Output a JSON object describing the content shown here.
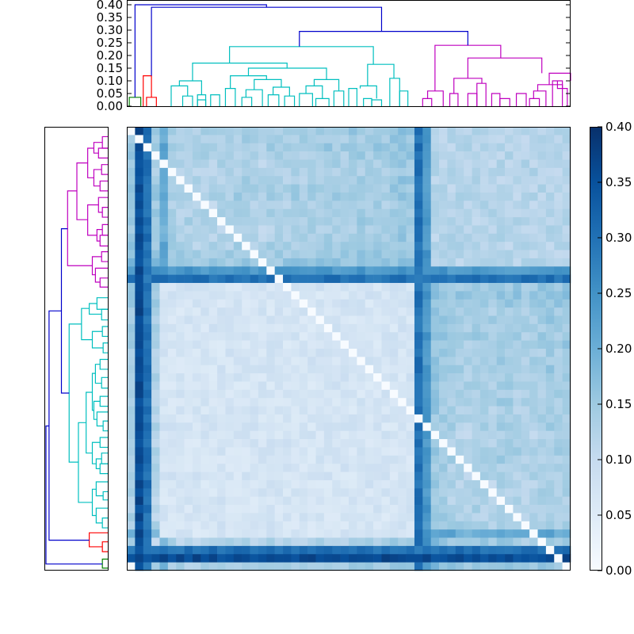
{
  "chart_data": [
    {
      "type": "dendrogram",
      "orientation": "top",
      "ylim": [
        0,
        0.4
      ],
      "yticks": [
        "0.00",
        "0.05",
        "0.10",
        "0.15",
        "0.20",
        "0.25",
        "0.30",
        "0.35",
        "0.40"
      ],
      "n_leaves": 54,
      "cluster_colors": {
        "green": "#008000",
        "red": "#ff0000",
        "cyan": "#00bfbf",
        "magenta": "#bf00bf",
        "blue": "#0000cc"
      },
      "links": [
        {
          "x1": 0.3,
          "x2": 1.7,
          "b1": 0.0,
          "b2": 0.0,
          "h": 0.035,
          "color": "green"
        },
        {
          "x1": 2.4,
          "x2": 3.6,
          "b1": 0.0,
          "b2": 0.0,
          "h": 0.035,
          "color": "red"
        },
        {
          "x1": 2.0,
          "x2": 3.0,
          "b1": 0.0,
          "b2": 0.035,
          "h": 0.12,
          "color": "red"
        },
        {
          "x1": 6.8,
          "x2": 8.0,
          "b1": 0.0,
          "b2": 0.0,
          "h": 0.04,
          "color": "cyan"
        },
        {
          "x1": 5.4,
          "x2": 7.4,
          "b1": 0.0,
          "b2": 0.04,
          "h": 0.08,
          "color": "cyan"
        },
        {
          "x1": 8.6,
          "x2": 9.6,
          "b1": 0.0,
          "b2": 0.0,
          "h": 0.025,
          "color": "cyan"
        },
        {
          "x1": 8.6,
          "x2": 9.6,
          "b1": 0.0,
          "b2": 0.0,
          "h": 0.045,
          "color": "cyan"
        },
        {
          "x1": 6.4,
          "x2": 9.1,
          "b1": 0.08,
          "b2": 0.045,
          "h": 0.1,
          "color": "cyan"
        },
        {
          "x1": 10.2,
          "x2": 11.3,
          "b1": 0.0,
          "b2": 0.0,
          "h": 0.045,
          "color": "cyan"
        },
        {
          "x1": 12.0,
          "x2": 13.2,
          "b1": 0.0,
          "b2": 0.0,
          "h": 0.07,
          "color": "cyan"
        },
        {
          "x1": 14.0,
          "x2": 15.2,
          "b1": 0.0,
          "b2": 0.0,
          "h": 0.035,
          "color": "cyan"
        },
        {
          "x1": 14.5,
          "x2": 16.5,
          "b1": 0.035,
          "b2": 0.0,
          "h": 0.065,
          "color": "cyan"
        },
        {
          "x1": 17.2,
          "x2": 18.5,
          "b1": 0.0,
          "b2": 0.0,
          "h": 0.045,
          "color": "cyan"
        },
        {
          "x1": 19.2,
          "x2": 20.4,
          "b1": 0.0,
          "b2": 0.0,
          "h": 0.04,
          "color": "cyan"
        },
        {
          "x1": 17.8,
          "x2": 19.8,
          "b1": 0.045,
          "b2": 0.04,
          "h": 0.075,
          "color": "cyan"
        },
        {
          "x1": 15.5,
          "x2": 18.8,
          "b1": 0.065,
          "b2": 0.075,
          "h": 0.105,
          "color": "cyan"
        },
        {
          "x1": 12.6,
          "x2": 17.0,
          "b1": 0.07,
          "b2": 0.105,
          "h": 0.12,
          "color": "cyan"
        },
        {
          "x1": 21.0,
          "x2": 22.6,
          "b1": 0.0,
          "b2": 0.0,
          "h": 0.05,
          "color": "cyan"
        },
        {
          "x1": 23.0,
          "x2": 24.6,
          "b1": 0.0,
          "b2": 0.0,
          "h": 0.03,
          "color": "cyan"
        },
        {
          "x1": 25.2,
          "x2": 26.4,
          "b1": 0.0,
          "b2": 0.0,
          "h": 0.06,
          "color": "cyan"
        },
        {
          "x1": 21.8,
          "x2": 23.8,
          "b1": 0.05,
          "b2": 0.03,
          "h": 0.08,
          "color": "cyan"
        },
        {
          "x1": 22.8,
          "x2": 25.8,
          "b1": 0.08,
          "b2": 0.06,
          "h": 0.105,
          "color": "cyan"
        },
        {
          "x1": 14.8,
          "x2": 24.3,
          "b1": 0.12,
          "b2": 0.105,
          "h": 0.15,
          "color": "cyan"
        },
        {
          "x1": 8.0,
          "x2": 19.5,
          "b1": 0.1,
          "b2": 0.15,
          "h": 0.17,
          "color": "cyan"
        },
        {
          "x1": 27.0,
          "x2": 28.0,
          "b1": 0.0,
          "b2": 0.0,
          "h": 0.07,
          "color": "cyan"
        },
        {
          "x1": 28.8,
          "x2": 29.8,
          "b1": 0.0,
          "b2": 0.0,
          "h": 0.03,
          "color": "cyan"
        },
        {
          "x1": 29.8,
          "x2": 31.0,
          "b1": 0.0,
          "b2": 0.0,
          "h": 0.025,
          "color": "cyan"
        },
        {
          "x1": 28.4,
          "x2": 30.4,
          "b1": 0.07,
          "b2": 0.03,
          "h": 0.08,
          "color": "cyan"
        },
        {
          "x1": 32.0,
          "x2": 33.2,
          "b1": 0.0,
          "b2": 0.0,
          "h": 0.11,
          "color": "cyan"
        },
        {
          "x1": 33.2,
          "x2": 34.2,
          "b1": 0.0,
          "b2": 0.0,
          "h": 0.06,
          "color": "cyan"
        },
        {
          "x1": 29.3,
          "x2": 32.5,
          "b1": 0.08,
          "b2": 0.11,
          "h": 0.165,
          "color": "cyan"
        },
        {
          "x1": 12.5,
          "x2": 30.0,
          "b1": 0.17,
          "b2": 0.165,
          "h": 0.235,
          "color": "cyan"
        },
        {
          "x1": 36.0,
          "x2": 37.1,
          "b1": 0.0,
          "b2": 0.0,
          "h": 0.03,
          "color": "magenta"
        },
        {
          "x1": 36.6,
          "x2": 38.5,
          "b1": 0.03,
          "b2": 0.0,
          "h": 0.06,
          "color": "magenta"
        },
        {
          "x1": 39.3,
          "x2": 40.3,
          "b1": 0.0,
          "b2": 0.0,
          "h": 0.05,
          "color": "magenta"
        },
        {
          "x1": 41.5,
          "x2": 42.6,
          "b1": 0.0,
          "b2": 0.0,
          "h": 0.05,
          "color": "magenta"
        },
        {
          "x1": 42.6,
          "x2": 43.7,
          "b1": 0.0,
          "b2": 0.0,
          "h": 0.09,
          "color": "magenta"
        },
        {
          "x1": 39.8,
          "x2": 43.2,
          "b1": 0.05,
          "b2": 0.09,
          "h": 0.11,
          "color": "magenta"
        },
        {
          "x1": 44.4,
          "x2": 45.4,
          "b1": 0.0,
          "b2": 0.0,
          "h": 0.05,
          "color": "magenta"
        },
        {
          "x1": 45.4,
          "x2": 46.6,
          "b1": 0.0,
          "b2": 0.0,
          "h": 0.03,
          "color": "magenta"
        },
        {
          "x1": 47.4,
          "x2": 48.6,
          "b1": 0.0,
          "b2": 0.0,
          "h": 0.05,
          "color": "magenta"
        },
        {
          "x1": 49.0,
          "x2": 50.2,
          "b1": 0.0,
          "b2": 0.0,
          "h": 0.03,
          "color": "magenta"
        },
        {
          "x1": 49.5,
          "x2": 51.0,
          "b1": 0.03,
          "b2": 0.0,
          "h": 0.06,
          "color": "magenta"
        },
        {
          "x1": 51.8,
          "x2": 53.0,
          "b1": 0.0,
          "b2": 0.0,
          "h": 0.1,
          "color": "magenta"
        },
        {
          "x1": 52.4,
          "x2": 53.6,
          "b1": 0.1,
          "b2": 0.0,
          "h": 0.07,
          "color": "magenta"
        },
        {
          "x1": 50.0,
          "x2": 53.0,
          "b1": 0.06,
          "b2": 0.07,
          "h": 0.085,
          "color": "magenta"
        },
        {
          "x1": 51.4,
          "x2": 54.0,
          "b1": 0.085,
          "b2": 0.1,
          "h": 0.13,
          "color": "magenta"
        },
        {
          "x1": 41.5,
          "x2": 50.5,
          "b1": 0.11,
          "b2": 0.13,
          "h": 0.19,
          "color": "magenta"
        },
        {
          "x1": 37.5,
          "x2": 45.5,
          "b1": 0.06,
          "b2": 0.19,
          "h": 0.24,
          "color": "magenta"
        },
        {
          "x1": 21.0,
          "x2": 41.5,
          "b1": 0.235,
          "b2": 0.24,
          "h": 0.295,
          "color": "blue"
        },
        {
          "x1": 3.0,
          "x2": 31.0,
          "b1": 0.12,
          "b2": 0.295,
          "h": 0.39,
          "color": "blue"
        },
        {
          "x1": 1.0,
          "x2": 17.0,
          "b1": 0.035,
          "b2": 0.39,
          "h": 0.4,
          "color": "blue"
        }
      ]
    },
    {
      "type": "dendrogram",
      "orientation": "left",
      "n_leaves": 54,
      "cluster_colors": {
        "green": "#008000",
        "red": "#ff0000",
        "cyan": "#00bfbf",
        "magenta": "#bf00bf",
        "blue": "#0000cc"
      },
      "links": [
        {
          "y1": 0.3,
          "y2": 1.4,
          "b1": 0.0,
          "b2": 0.0,
          "h": 0.035,
          "color": "green"
        },
        {
          "y1": 2.3,
          "y2": 3.5,
          "b1": 0.0,
          "b2": 0.0,
          "h": 0.035,
          "color": "red"
        },
        {
          "y1": 2.9,
          "y2": 4.6,
          "b1": 0.035,
          "b2": 0.0,
          "h": 0.12,
          "color": "red"
        },
        {
          "y1": 5.2,
          "y2": 6.4,
          "b1": 0.0,
          "b2": 0.0,
          "h": 0.035,
          "color": "cyan"
        },
        {
          "y1": 5.8,
          "y2": 7.6,
          "b1": 0.035,
          "b2": 0.0,
          "h": 0.075,
          "color": "cyan"
        },
        {
          "y1": 8.6,
          "y2": 9.6,
          "b1": 0.0,
          "b2": 0.0,
          "h": 0.03,
          "color": "cyan"
        },
        {
          "y1": 9.1,
          "y2": 10.8,
          "b1": 0.03,
          "b2": 0.0,
          "h": 0.075,
          "color": "cyan"
        },
        {
          "y1": 6.7,
          "y2": 9.9,
          "b1": 0.075,
          "b2": 0.075,
          "h": 0.1,
          "color": "cyan"
        },
        {
          "y1": 11.8,
          "y2": 13.0,
          "b1": 0.0,
          "b2": 0.0,
          "h": 0.05,
          "color": "cyan"
        },
        {
          "y1": 13.0,
          "y2": 14.3,
          "b1": 0.0,
          "b2": 0.0,
          "h": 0.04,
          "color": "cyan"
        },
        {
          "y1": 12.4,
          "y2": 13.6,
          "b1": 0.05,
          "b2": 0.04,
          "h": 0.075,
          "color": "cyan"
        },
        {
          "y1": 15.0,
          "y2": 16.2,
          "b1": 0.0,
          "b2": 0.0,
          "h": 0.05,
          "color": "cyan"
        },
        {
          "y1": 13.0,
          "y2": 15.6,
          "b1": 0.075,
          "b2": 0.05,
          "h": 0.1,
          "color": "cyan"
        },
        {
          "y1": 17.0,
          "y2": 18.2,
          "b1": 0.0,
          "b2": 0.0,
          "h": 0.03,
          "color": "cyan"
        },
        {
          "y1": 17.6,
          "y2": 19.3,
          "b1": 0.03,
          "b2": 0.0,
          "h": 0.07,
          "color": "cyan"
        },
        {
          "y1": 20.0,
          "y2": 21.2,
          "b1": 0.0,
          "b2": 0.0,
          "h": 0.05,
          "color": "cyan"
        },
        {
          "y1": 18.4,
          "y2": 20.6,
          "b1": 0.07,
          "b2": 0.05,
          "h": 0.09,
          "color": "cyan"
        },
        {
          "y1": 22.2,
          "y2": 23.5,
          "b1": 0.0,
          "b2": 0.0,
          "h": 0.04,
          "color": "cyan"
        },
        {
          "y1": 24.5,
          "y2": 25.7,
          "b1": 0.0,
          "b2": 0.0,
          "h": 0.05,
          "color": "cyan"
        },
        {
          "y1": 22.8,
          "y2": 25.1,
          "b1": 0.04,
          "b2": 0.05,
          "h": 0.08,
          "color": "cyan"
        },
        {
          "y1": 19.5,
          "y2": 24.0,
          "b1": 0.09,
          "b2": 0.08,
          "h": 0.1,
          "color": "cyan"
        },
        {
          "y1": 14.3,
          "y2": 21.7,
          "b1": 0.1,
          "b2": 0.1,
          "h": 0.14,
          "color": "cyan"
        },
        {
          "y1": 8.3,
          "y2": 18.0,
          "b1": 0.1,
          "b2": 0.14,
          "h": 0.19,
          "color": "cyan"
        },
        {
          "y1": 26.5,
          "y2": 27.7,
          "b1": 0.0,
          "b2": 0.0,
          "h": 0.03,
          "color": "cyan"
        },
        {
          "y1": 28.5,
          "y2": 29.7,
          "b1": 0.0,
          "b2": 0.0,
          "h": 0.035,
          "color": "cyan"
        },
        {
          "y1": 27.1,
          "y2": 29.1,
          "b1": 0.03,
          "b2": 0.035,
          "h": 0.1,
          "color": "cyan"
        },
        {
          "y1": 30.5,
          "y2": 31.8,
          "b1": 0.0,
          "b2": 0.0,
          "h": 0.04,
          "color": "cyan"
        },
        {
          "y1": 31.8,
          "y2": 33.2,
          "b1": 0.0,
          "b2": 0.0,
          "h": 0.07,
          "color": "cyan"
        },
        {
          "y1": 31.2,
          "y2": 32.5,
          "b1": 0.04,
          "b2": 0.07,
          "h": 0.12,
          "color": "cyan"
        },
        {
          "y1": 28.1,
          "y2": 31.9,
          "b1": 0.1,
          "b2": 0.12,
          "h": 0.17,
          "color": "cyan"
        },
        {
          "y1": 13.2,
          "y2": 30.0,
          "b1": 0.19,
          "b2": 0.17,
          "h": 0.25,
          "color": "cyan"
        },
        {
          "y1": 34.5,
          "y2": 35.6,
          "b1": 0.0,
          "b2": 0.0,
          "h": 0.05,
          "color": "magenta"
        },
        {
          "y1": 35.1,
          "y2": 36.8,
          "b1": 0.05,
          "b2": 0.0,
          "h": 0.08,
          "color": "magenta"
        },
        {
          "y1": 37.6,
          "y2": 38.8,
          "b1": 0.0,
          "b2": 0.0,
          "h": 0.04,
          "color": "magenta"
        },
        {
          "y1": 36.0,
          "y2": 38.2,
          "b1": 0.08,
          "b2": 0.04,
          "h": 0.1,
          "color": "magenta"
        },
        {
          "y1": 39.5,
          "y2": 40.8,
          "b1": 0.0,
          "b2": 0.0,
          "h": 0.05,
          "color": "magenta"
        },
        {
          "y1": 40.8,
          "y2": 42.1,
          "b1": 0.0,
          "b2": 0.0,
          "h": 0.035,
          "color": "magenta"
        },
        {
          "y1": 40.1,
          "y2": 41.5,
          "b1": 0.05,
          "b2": 0.035,
          "h": 0.07,
          "color": "magenta"
        },
        {
          "y1": 43.0,
          "y2": 44.2,
          "b1": 0.0,
          "b2": 0.0,
          "h": 0.035,
          "color": "magenta"
        },
        {
          "y1": 43.6,
          "y2": 45.4,
          "b1": 0.035,
          "b2": 0.0,
          "h": 0.06,
          "color": "magenta"
        },
        {
          "y1": 40.8,
          "y2": 44.5,
          "b1": 0.07,
          "b2": 0.06,
          "h": 0.13,
          "color": "magenta"
        },
        {
          "y1": 46.2,
          "y2": 47.4,
          "b1": 0.0,
          "b2": 0.0,
          "h": 0.05,
          "color": "magenta"
        },
        {
          "y1": 48.2,
          "y2": 49.4,
          "b1": 0.0,
          "b2": 0.0,
          "h": 0.04,
          "color": "magenta"
        },
        {
          "y1": 46.8,
          "y2": 48.8,
          "b1": 0.05,
          "b2": 0.04,
          "h": 0.09,
          "color": "magenta"
        },
        {
          "y1": 50.2,
          "y2": 51.4,
          "b1": 0.0,
          "b2": 0.0,
          "h": 0.06,
          "color": "magenta"
        },
        {
          "y1": 51.4,
          "y2": 52.8,
          "b1": 0.0,
          "b2": 0.0,
          "h": 0.035,
          "color": "magenta"
        },
        {
          "y1": 50.8,
          "y2": 52.1,
          "b1": 0.06,
          "b2": 0.035,
          "h": 0.09,
          "color": "magenta"
        },
        {
          "y1": 47.8,
          "y2": 51.4,
          "b1": 0.09,
          "b2": 0.09,
          "h": 0.13,
          "color": "magenta"
        },
        {
          "y1": 42.7,
          "y2": 49.6,
          "b1": 0.13,
          "b2": 0.13,
          "h": 0.2,
          "color": "magenta"
        },
        {
          "y1": 37.1,
          "y2": 46.2,
          "b1": 0.1,
          "b2": 0.2,
          "h": 0.26,
          "color": "magenta"
        },
        {
          "y1": 21.6,
          "y2": 41.6,
          "b1": 0.25,
          "b2": 0.26,
          "h": 0.3,
          "color": "blue"
        },
        {
          "y1": 3.7,
          "y2": 31.6,
          "b1": 0.12,
          "b2": 0.3,
          "h": 0.38,
          "color": "blue"
        },
        {
          "y1": 0.8,
          "y2": 17.6,
          "b1": 0.035,
          "b2": 0.38,
          "h": 0.4,
          "color": "blue"
        }
      ]
    },
    {
      "type": "heatmap",
      "n": 54,
      "zlim": [
        0,
        0.4
      ],
      "colormap": "Blues",
      "diagonal": 0.0,
      "row_base": [
        0.16,
        0.36,
        0.34,
        0.14,
        0.26,
        0.12,
        0.1,
        0.1,
        0.09,
        0.1,
        0.09,
        0.1,
        0.1,
        0.11,
        0.12,
        0.1,
        0.09,
        0.11,
        0.1,
        0.1,
        0.12,
        0.11,
        0.12,
        0.11,
        0.13,
        0.12,
        0.11,
        0.12,
        0.13,
        0.12,
        0.13,
        0.12,
        0.14,
        0.16,
        0.15,
        0.3,
        0.19,
        0.2,
        0.18,
        0.16,
        0.15,
        0.14,
        0.16,
        0.15,
        0.14,
        0.17,
        0.16,
        0.15,
        0.14,
        0.15,
        0.16,
        0.17,
        0.16,
        0.18
      ],
      "blocks": [
        {
          "rows": [
            0,
            1
          ],
          "cols": [
            0,
            1
          ],
          "value": 0.03
        },
        {
          "rows": [
            2,
            3
          ],
          "cols": [
            2,
            3
          ],
          "value": 0.08
        },
        {
          "rows": [
            4,
            34
          ],
          "cols": [
            4,
            34
          ],
          "value": 0.07
        },
        {
          "rows": [
            36,
            53
          ],
          "cols": [
            36,
            53
          ],
          "value": 0.12
        }
      ],
      "strong_bands": [
        {
          "index": 1,
          "value": 0.36
        },
        {
          "index": 2,
          "value": 0.3
        },
        {
          "index": 35,
          "value": 0.3
        },
        {
          "index": 36,
          "value": 0.24
        }
      ],
      "colorbar": {
        "ticks": [
          "0.00",
          "0.05",
          "0.10",
          "0.15",
          "0.20",
          "0.25",
          "0.30",
          "0.35",
          "0.40"
        ],
        "range": [
          0,
          0.4
        ]
      }
    }
  ]
}
